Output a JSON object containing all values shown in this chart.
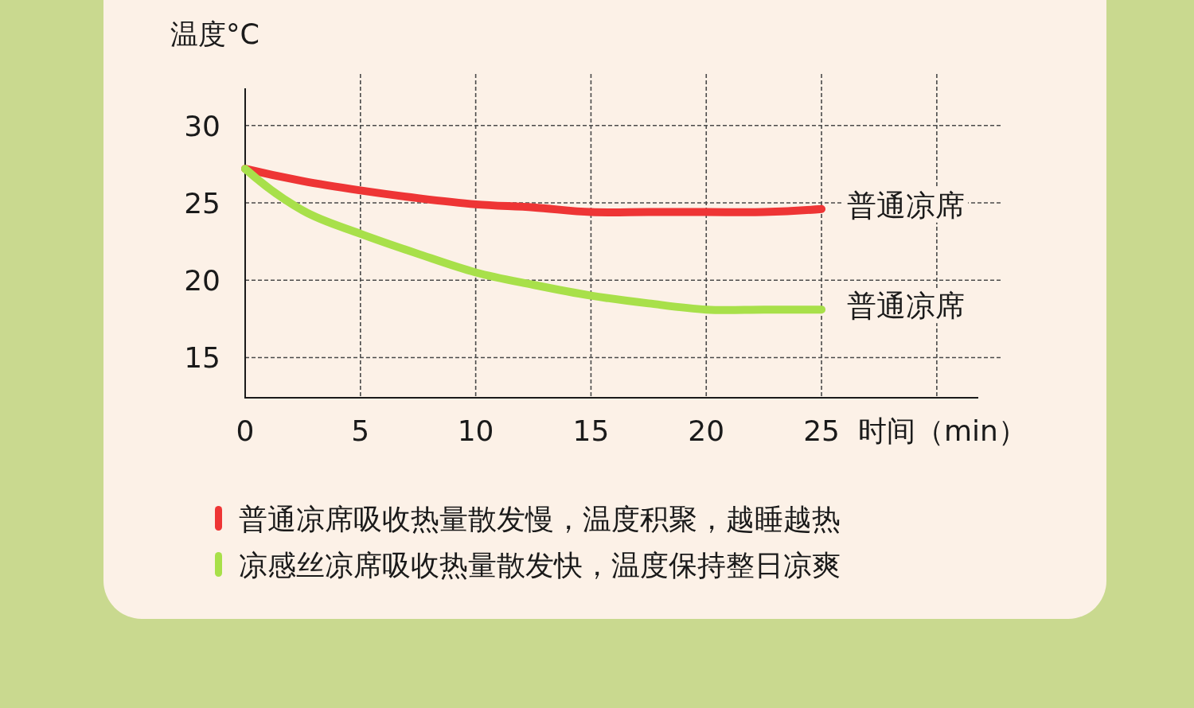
{
  "chart_data": {
    "type": "line",
    "xlabel": "时间（min）",
    "ylabel": "温度°C",
    "x": [
      0,
      2.5,
      5,
      7.5,
      10,
      12.5,
      15,
      17.5,
      20,
      22.5,
      25
    ],
    "series": [
      {
        "name": "普通凉席吸收热量散发慢，温度积聚，越睡越热",
        "color": "#ee3535",
        "values": [
          27.2,
          26.4,
          25.8,
          25.3,
          24.9,
          24.7,
          24.4,
          24.4,
          24.4,
          24.4,
          24.6
        ]
      },
      {
        "name": "凉感丝凉席吸收热量散发快，温度保持整日凉爽",
        "color": "#a8e04a",
        "values": [
          27.2,
          24.5,
          23.0,
          21.7,
          20.5,
          19.7,
          19.0,
          18.5,
          18.1,
          18.1,
          18.1
        ]
      }
    ],
    "xlim": [
      0,
      31.8
    ],
    "ylim": [
      12.4,
      32.4
    ],
    "xticks": [
      0,
      5,
      10,
      15,
      20,
      25,
      {
        "value": 30,
        "label": null
      }
    ],
    "yticks": [
      15,
      20,
      25,
      30
    ],
    "grid": true,
    "legend": "bottom",
    "line_style": "solid",
    "annotations": [
      {
        "text": "普通凉席",
        "x": 25,
        "y": 24.6
      },
      {
        "text": "普通凉席",
        "x": 25,
        "y": 18.1
      }
    ]
  }
}
